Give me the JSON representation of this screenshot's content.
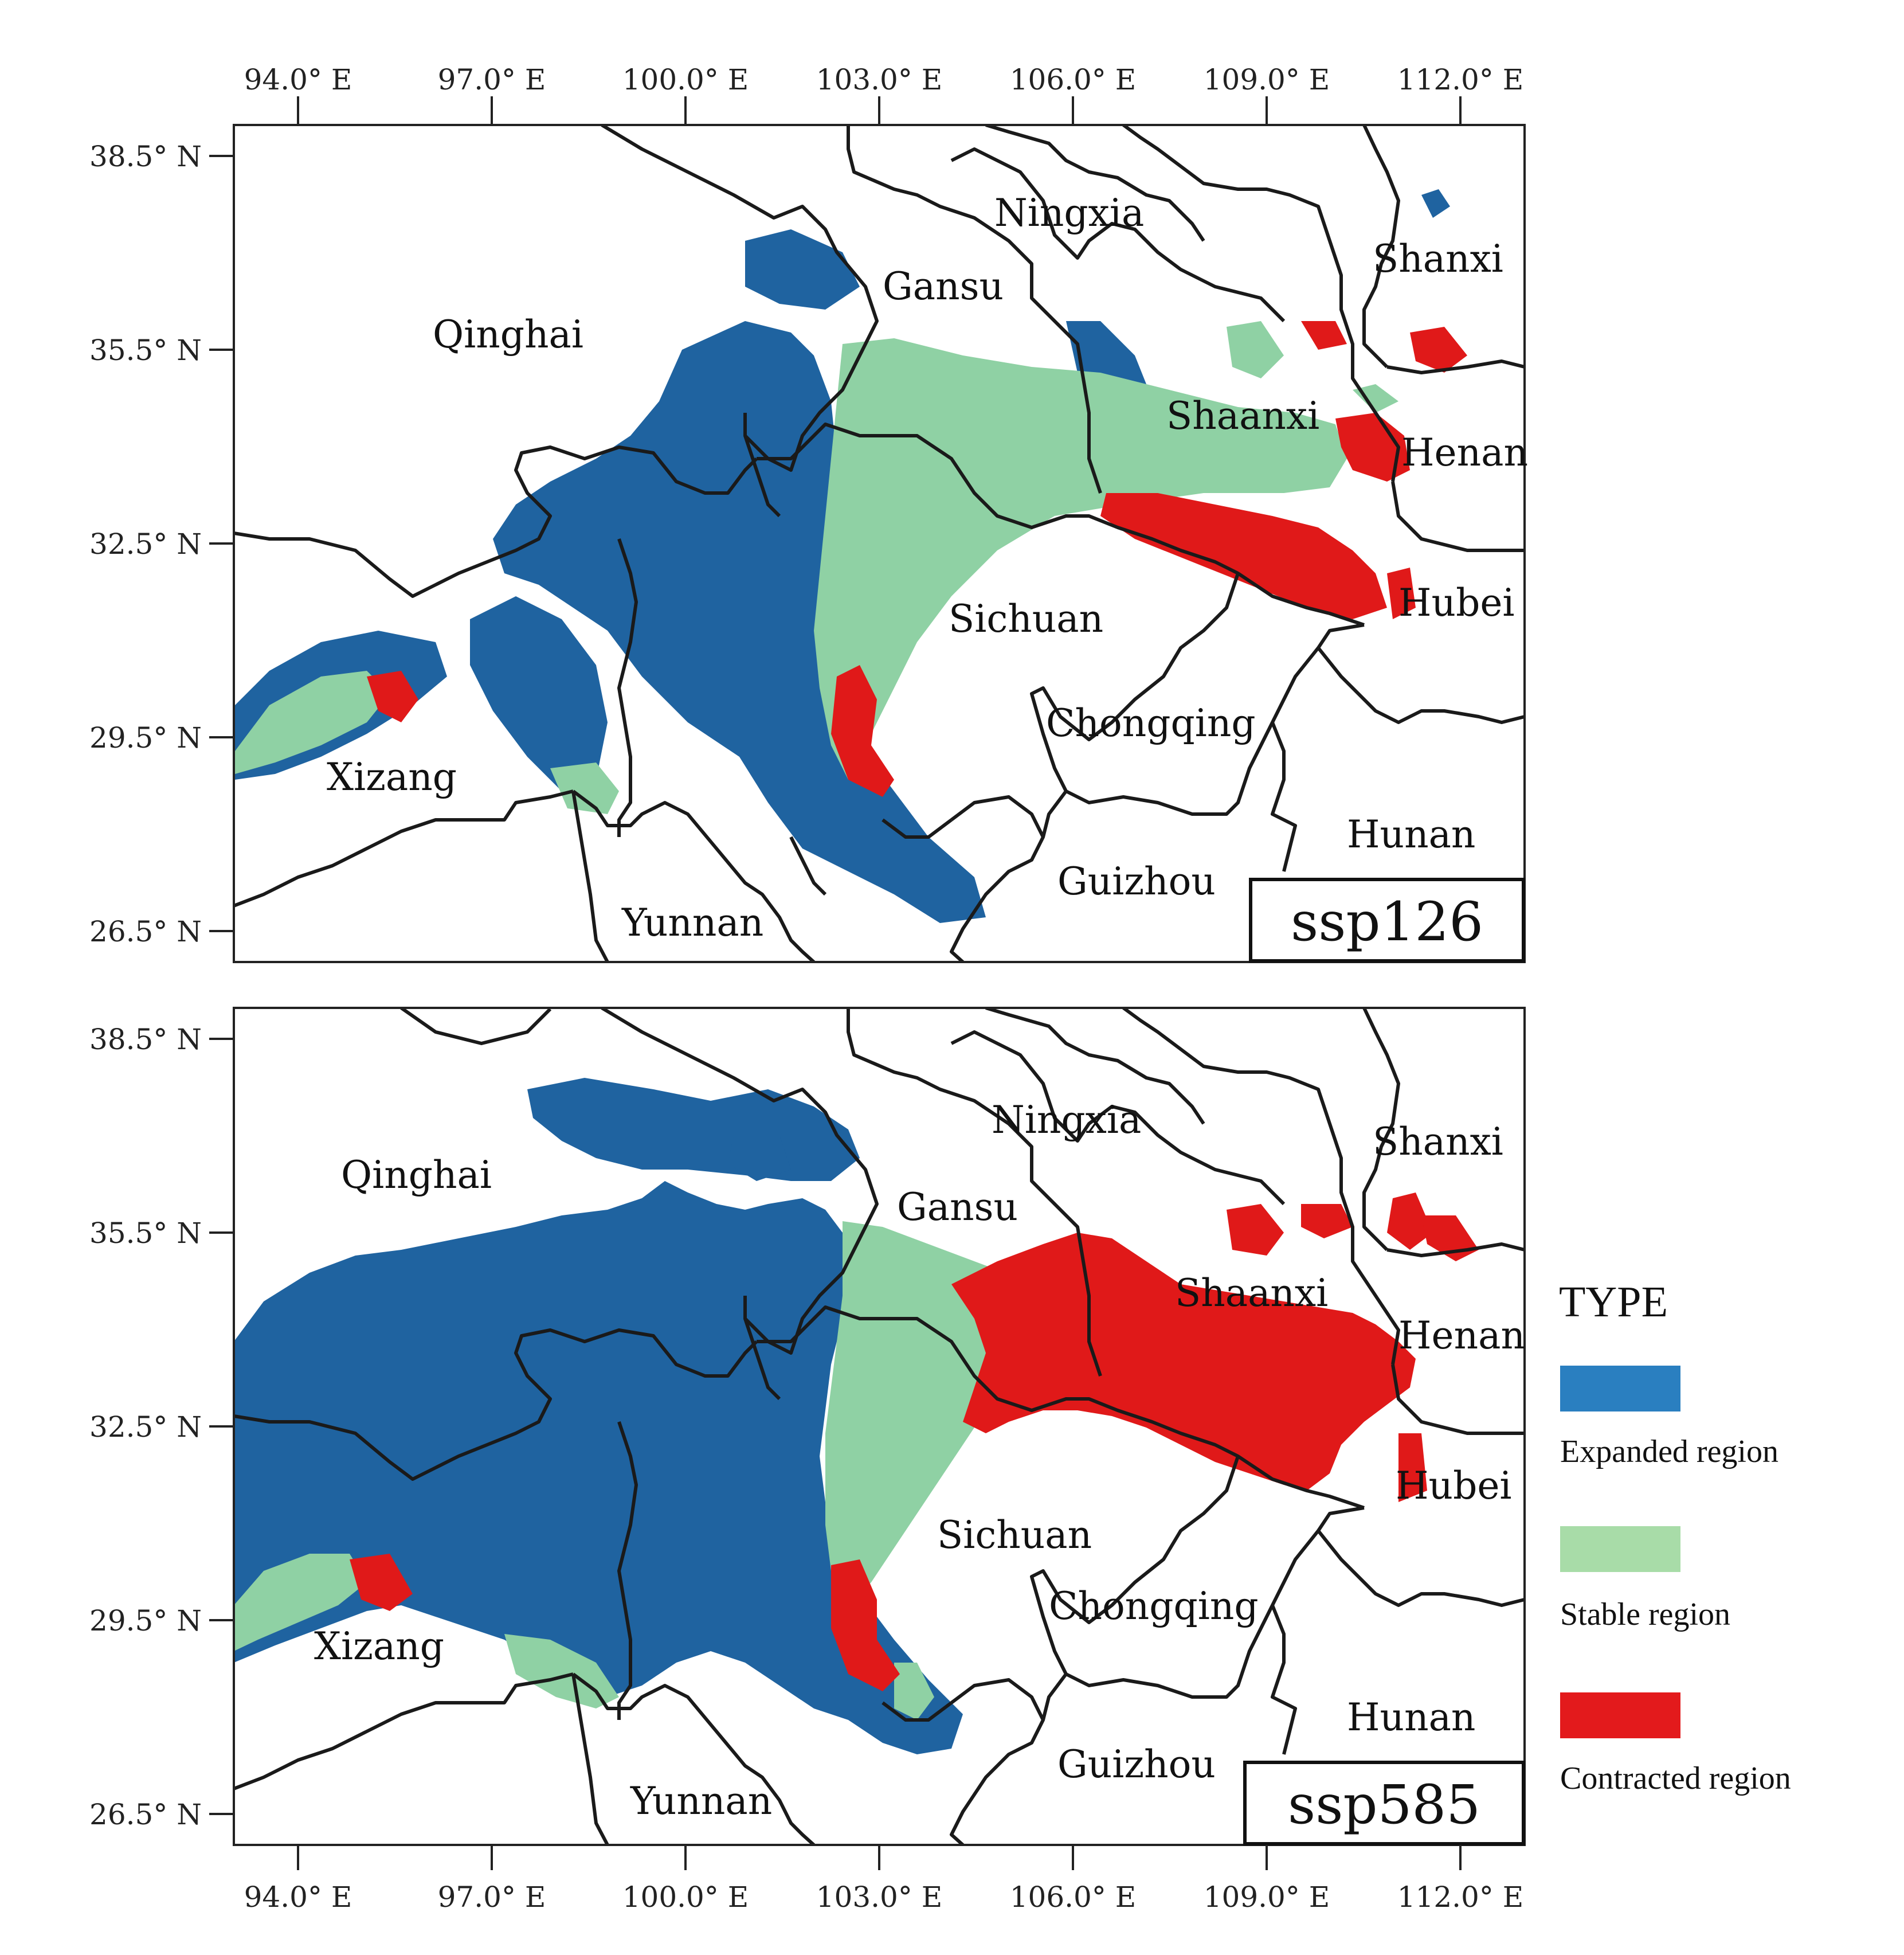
{
  "x_ticks": [
    "94.0° E",
    "97.0° E",
    "100.0° E",
    "103.0° E",
    "106.0° E",
    "109.0° E",
    "112.0° E"
  ],
  "y_ticks": [
    "38.5° N",
    "35.5° N",
    "32.5° N",
    "29.5° N",
    "26.5° N"
  ],
  "lon_values": [
    94.0,
    97.0,
    100.0,
    103.0,
    106.0,
    109.0,
    112.0
  ],
  "lat_values": [
    38.5,
    35.5,
    32.5,
    29.5,
    26.5
  ],
  "panels": [
    {
      "scenario": "ssp126",
      "provinces": [
        "Qinghai",
        "Gansu",
        "Ningxia",
        "Shanxi",
        "Shaanxi",
        "Henan",
        "Sichuan",
        "Hubei",
        "Chongqing",
        "Xizang",
        "Hunan",
        "Guizhou",
        "Yunnan"
      ]
    },
    {
      "scenario": "ssp585",
      "provinces": [
        "Qinghai",
        "Gansu",
        "Ningxia",
        "Shanxi",
        "Shaanxi",
        "Henan",
        "Sichuan",
        "Hubei",
        "Chongqing",
        "Xizang",
        "Hunan",
        "Guizhou",
        "Yunnan"
      ]
    }
  ],
  "legend": {
    "title": "TYPE",
    "items": [
      {
        "label": "Expanded region",
        "color": "#2a7fc0"
      },
      {
        "label": "Stable region",
        "color": "#a8dca8"
      },
      {
        "label": "Contracted region",
        "color": "#e31a1c"
      }
    ]
  },
  "colors": {
    "expanded": "#1f63a0",
    "stable": "#8fd1a4",
    "contracted": "#e01919"
  }
}
